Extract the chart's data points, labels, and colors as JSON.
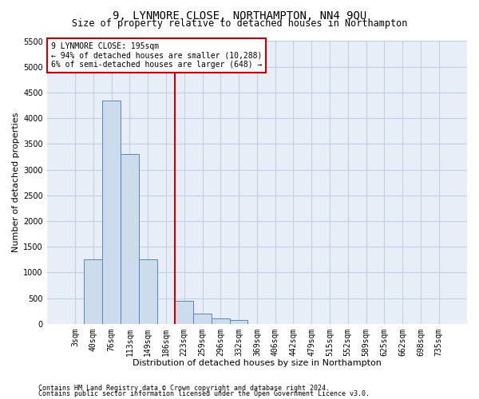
{
  "title": "9, LYNMORE CLOSE, NORTHAMPTON, NN4 9QU",
  "subtitle": "Size of property relative to detached houses in Northampton",
  "xlabel": "Distribution of detached houses by size in Northampton",
  "ylabel": "Number of detached properties",
  "footnote1": "Contains HM Land Registry data © Crown copyright and database right 2024.",
  "footnote2": "Contains public sector information licensed under the Open Government Licence v3.0.",
  "bar_labels": [
    "3sqm",
    "40sqm",
    "76sqm",
    "113sqm",
    "149sqm",
    "186sqm",
    "223sqm",
    "259sqm",
    "296sqm",
    "332sqm",
    "369sqm",
    "406sqm",
    "442sqm",
    "479sqm",
    "515sqm",
    "552sqm",
    "589sqm",
    "625sqm",
    "662sqm",
    "698sqm",
    "735sqm"
  ],
  "bar_values": [
    0,
    1250,
    4350,
    3300,
    1250,
    0,
    450,
    200,
    100,
    75,
    0,
    0,
    0,
    0,
    0,
    0,
    0,
    0,
    0,
    0,
    0
  ],
  "bar_color": "#ccdcec",
  "bar_edge_color": "#5588bb",
  "vline_color": "#cc0000",
  "annotation_text": "9 LYNMORE CLOSE: 195sqm\n← 94% of detached houses are smaller (10,288)\n6% of semi-detached houses are larger (648) →",
  "annotation_box_color": "#ffffff",
  "annotation_box_edge": "#cc0000",
  "ylim": [
    0,
    5500
  ],
  "yticks": [
    0,
    500,
    1000,
    1500,
    2000,
    2500,
    3000,
    3500,
    4000,
    4500,
    5000,
    5500
  ],
  "grid_color": "#c0d0e0",
  "bg_color": "#e8eef8",
  "title_fontsize": 10,
  "subtitle_fontsize": 8.5,
  "axis_label_fontsize": 8,
  "tick_fontsize": 7,
  "footnote_fontsize": 6
}
